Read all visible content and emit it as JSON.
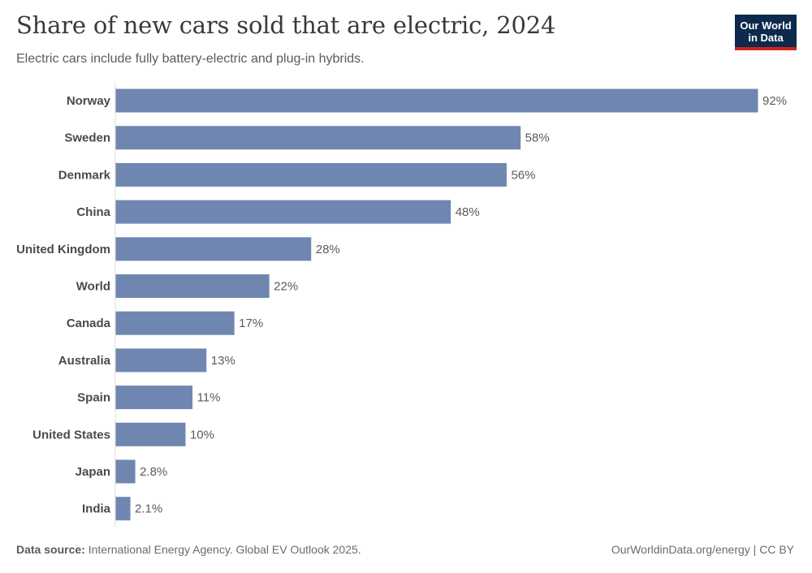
{
  "header": {
    "title": "Share of new cars sold that are electric, 2024",
    "subtitle": "Electric cars include fully battery-electric and plug-in hybrids."
  },
  "logo": {
    "line1": "Our World",
    "line2": "in Data"
  },
  "footer": {
    "source_label": "Data source:",
    "source_text": "International Energy Agency. Global EV Outlook 2025.",
    "credit": "OurWorldinData.org/energy | CC BY"
  },
  "colors": {
    "bar": "#6f87b0",
    "axis": "#dcdcdc",
    "logo_bg": "#0d2a4e",
    "logo_accent": "#ce261e"
  },
  "chart_data": {
    "type": "bar",
    "orientation": "horizontal",
    "title": "Share of new cars sold that are electric, 2024",
    "xlabel": "",
    "ylabel": "",
    "xlim": [
      0,
      92
    ],
    "categories": [
      "Norway",
      "Sweden",
      "Denmark",
      "China",
      "United Kingdom",
      "World",
      "Canada",
      "Australia",
      "Spain",
      "United States",
      "Japan",
      "India"
    ],
    "values": [
      92,
      58,
      56,
      48,
      28,
      22,
      17,
      13,
      11,
      10,
      2.8,
      2.1
    ],
    "labels": [
      "92%",
      "58%",
      "56%",
      "48%",
      "28%",
      "22%",
      "17%",
      "13%",
      "11%",
      "10%",
      "2.8%",
      "2.1%"
    ]
  }
}
